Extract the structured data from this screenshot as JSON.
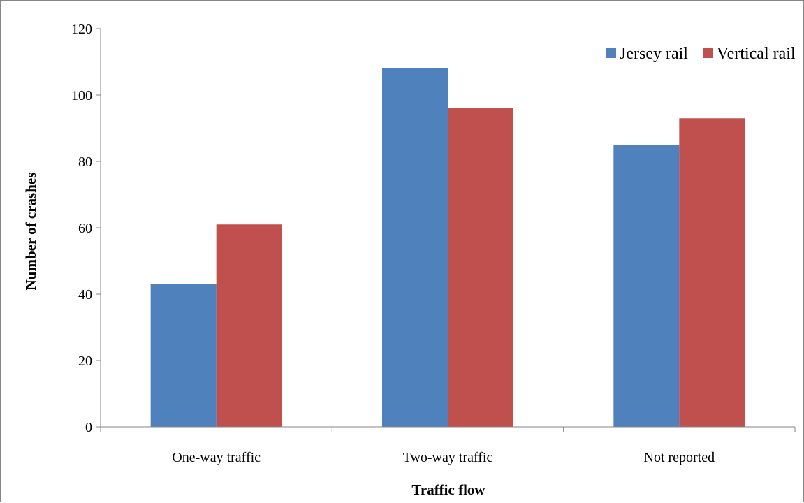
{
  "chart_data": {
    "type": "bar",
    "title": "",
    "xlabel": "Traffic flow",
    "ylabel": "Number of crashes",
    "categories": [
      "One-way traffic",
      "Two-way traffic",
      "Not reported"
    ],
    "series": [
      {
        "name": "Jersey rail",
        "values": [
          43,
          108,
          85
        ],
        "color": "#4F81BD"
      },
      {
        "name": "Vertical rail",
        "values": [
          61,
          96,
          93
        ],
        "color": "#C0504D"
      }
    ],
    "ylim": [
      0,
      120
    ],
    "yticks": [
      0,
      20,
      40,
      60,
      80,
      100,
      120
    ],
    "grid": false,
    "legend_position": "top-right"
  }
}
